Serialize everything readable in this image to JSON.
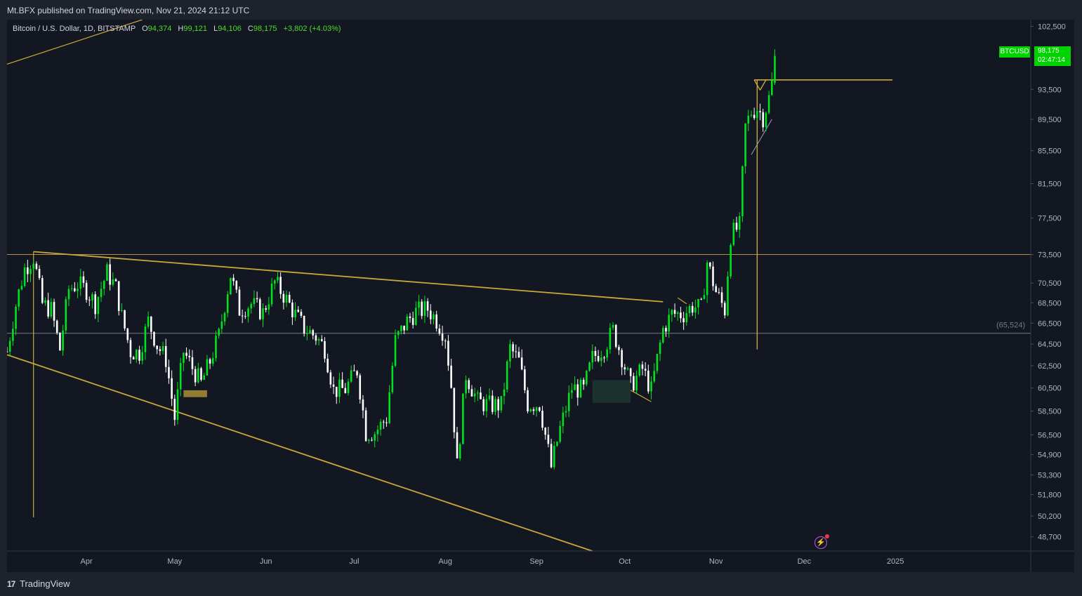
{
  "header": {
    "published": "Mt.BFX published on TradingView.com, Nov 21, 2024 21:12 UTC"
  },
  "legend": {
    "symbol": "Bitcoin / U.S. Dollar, 1D, BITSTAMP",
    "open_label": "O",
    "open": "94,374",
    "high_label": "H",
    "high": "99,121",
    "low_label": "L",
    "low": "94,106",
    "close_label": "C",
    "close": "98,175",
    "change": "+3,802 (+4.03%)"
  },
  "price_tag": {
    "symbol": "BTCUSD",
    "price": "98,175",
    "countdown": "02:47:14"
  },
  "reference_label": "(65,524)",
  "footer": {
    "brand": "TradingView"
  },
  "colors": {
    "background": "#131722",
    "up": "#00e11f",
    "down": "#ffffff",
    "drawing": "#c9a83a",
    "horizontal_ref": "#d4a34a"
  },
  "icons": {
    "brand": "tradingview-logo-icon",
    "alert": "flash-icon"
  },
  "chart_data": {
    "type": "candlestick",
    "symbol": "BTCUSD",
    "interval": "1D",
    "y_axis": {
      "scale": "log",
      "ylim": [
        47700,
        103500
      ],
      "ticks": [
        "102,500",
        "93,500",
        "89,500",
        "85,500",
        "81,500",
        "77,500",
        "73,500",
        "70,500",
        "68,500",
        "66,500",
        "64,500",
        "62,500",
        "60,500",
        "58,500",
        "56,500",
        "54,900",
        "53,300",
        "51,800",
        "50,200",
        "48,700"
      ]
    },
    "x_axis": {
      "range": [
        "2024-03-05",
        "2025-02-16"
      ],
      "ticks": [
        {
          "date": "2024-04-01",
          "label": "Apr"
        },
        {
          "date": "2024-05-01",
          "label": "May"
        },
        {
          "date": "2024-06-01",
          "label": "Jun"
        },
        {
          "date": "2024-07-01",
          "label": "Jul"
        },
        {
          "date": "2024-08-01",
          "label": "Aug"
        },
        {
          "date": "2024-09-01",
          "label": "Sep"
        },
        {
          "date": "2024-10-01",
          "label": "Oct"
        },
        {
          "date": "2024-11-01",
          "label": "Nov"
        },
        {
          "date": "2024-12-01",
          "label": "Dec"
        },
        {
          "date": "2025-01-01",
          "label": "2025"
        }
      ]
    },
    "closes": [
      {
        "date": "2024-03-05",
        "close": 63800
      },
      {
        "date": "2024-03-08",
        "close": 68300
      },
      {
        "date": "2024-03-11",
        "close": 72000
      },
      {
        "date": "2024-03-14",
        "close": 73200
      },
      {
        "date": "2024-03-17",
        "close": 68400
      },
      {
        "date": "2024-03-20",
        "close": 67800
      },
      {
        "date": "2024-03-23",
        "close": 64000
      },
      {
        "date": "2024-03-26",
        "close": 69900
      },
      {
        "date": "2024-03-29",
        "close": 70400
      },
      {
        "date": "2024-04-01",
        "close": 69800
      },
      {
        "date": "2024-04-04",
        "close": 68400
      },
      {
        "date": "2024-04-08",
        "close": 71600
      },
      {
        "date": "2024-04-11",
        "close": 70000
      },
      {
        "date": "2024-04-13",
        "close": 67100
      },
      {
        "date": "2024-04-16",
        "close": 63800
      },
      {
        "date": "2024-04-19",
        "close": 63700
      },
      {
        "date": "2024-04-22",
        "close": 66700
      },
      {
        "date": "2024-04-25",
        "close": 64400
      },
      {
        "date": "2024-04-28",
        "close": 63100
      },
      {
        "date": "2024-05-01",
        "close": 57900
      },
      {
        "date": "2024-05-04",
        "close": 63800
      },
      {
        "date": "2024-05-07",
        "close": 62300
      },
      {
        "date": "2024-05-10",
        "close": 60900
      },
      {
        "date": "2024-05-13",
        "close": 62900
      },
      {
        "date": "2024-05-16",
        "close": 65300
      },
      {
        "date": "2024-05-20",
        "close": 71400
      },
      {
        "date": "2024-05-23",
        "close": 67800
      },
      {
        "date": "2024-05-27",
        "close": 68400
      },
      {
        "date": "2024-05-31",
        "close": 67500
      },
      {
        "date": "2024-06-04",
        "close": 70600
      },
      {
        "date": "2024-06-07",
        "close": 69300
      },
      {
        "date": "2024-06-11",
        "close": 67300
      },
      {
        "date": "2024-06-14",
        "close": 66000
      },
      {
        "date": "2024-06-18",
        "close": 65200
      },
      {
        "date": "2024-06-21",
        "close": 64100
      },
      {
        "date": "2024-06-24",
        "close": 60300
      },
      {
        "date": "2024-06-28",
        "close": 60400
      },
      {
        "date": "2024-07-02",
        "close": 62100
      },
      {
        "date": "2024-07-05",
        "close": 56700
      },
      {
        "date": "2024-07-08",
        "close": 56700
      },
      {
        "date": "2024-07-12",
        "close": 57900
      },
      {
        "date": "2024-07-15",
        "close": 64800
      },
      {
        "date": "2024-07-19",
        "close": 66700
      },
      {
        "date": "2024-07-22",
        "close": 67600
      },
      {
        "date": "2024-07-26",
        "close": 67900
      },
      {
        "date": "2024-07-29",
        "close": 66800
      },
      {
        "date": "2024-08-01",
        "close": 65300
      },
      {
        "date": "2024-08-03",
        "close": 60700
      },
      {
        "date": "2024-08-05",
        "close": 54000
      },
      {
        "date": "2024-08-08",
        "close": 61700
      },
      {
        "date": "2024-08-12",
        "close": 59300
      },
      {
        "date": "2024-08-16",
        "close": 59000
      },
      {
        "date": "2024-08-20",
        "close": 59000
      },
      {
        "date": "2024-08-23",
        "close": 64100
      },
      {
        "date": "2024-08-26",
        "close": 62900
      },
      {
        "date": "2024-08-29",
        "close": 59100
      },
      {
        "date": "2024-09-02",
        "close": 59100
      },
      {
        "date": "2024-09-06",
        "close": 53900
      },
      {
        "date": "2024-09-09",
        "close": 57000
      },
      {
        "date": "2024-09-13",
        "close": 60500
      },
      {
        "date": "2024-09-17",
        "close": 60300
      },
      {
        "date": "2024-09-20",
        "close": 63200
      },
      {
        "date": "2024-09-24",
        "close": 64200
      },
      {
        "date": "2024-09-27",
        "close": 65800
      },
      {
        "date": "2024-09-30",
        "close": 63300
      },
      {
        "date": "2024-10-03",
        "close": 60700
      },
      {
        "date": "2024-10-07",
        "close": 62200
      },
      {
        "date": "2024-10-10",
        "close": 60300
      },
      {
        "date": "2024-10-14",
        "close": 65900
      },
      {
        "date": "2024-10-17",
        "close": 67400
      },
      {
        "date": "2024-10-21",
        "close": 67400
      },
      {
        "date": "2024-10-24",
        "close": 68200
      },
      {
        "date": "2024-10-27",
        "close": 67900
      },
      {
        "date": "2024-10-29",
        "close": 72700
      },
      {
        "date": "2024-11-01",
        "close": 69600
      },
      {
        "date": "2024-11-04",
        "close": 67800
      },
      {
        "date": "2024-11-06",
        "close": 75600
      },
      {
        "date": "2024-11-09",
        "close": 76600
      },
      {
        "date": "2024-11-11",
        "close": 88500
      },
      {
        "date": "2024-11-13",
        "close": 90500
      },
      {
        "date": "2024-11-15",
        "close": 91000
      },
      {
        "date": "2024-11-17",
        "close": 89800
      },
      {
        "date": "2024-11-19",
        "close": 92300
      },
      {
        "date": "2024-11-20",
        "close": 94374
      },
      {
        "date": "2024-11-21",
        "close": 98175
      }
    ],
    "last_bar": {
      "date": "2024-11-21",
      "open": 94374,
      "high": 99121,
      "low": 94106,
      "close": 98175
    },
    "reference_level": 65524,
    "resistance_level": 73500
  }
}
